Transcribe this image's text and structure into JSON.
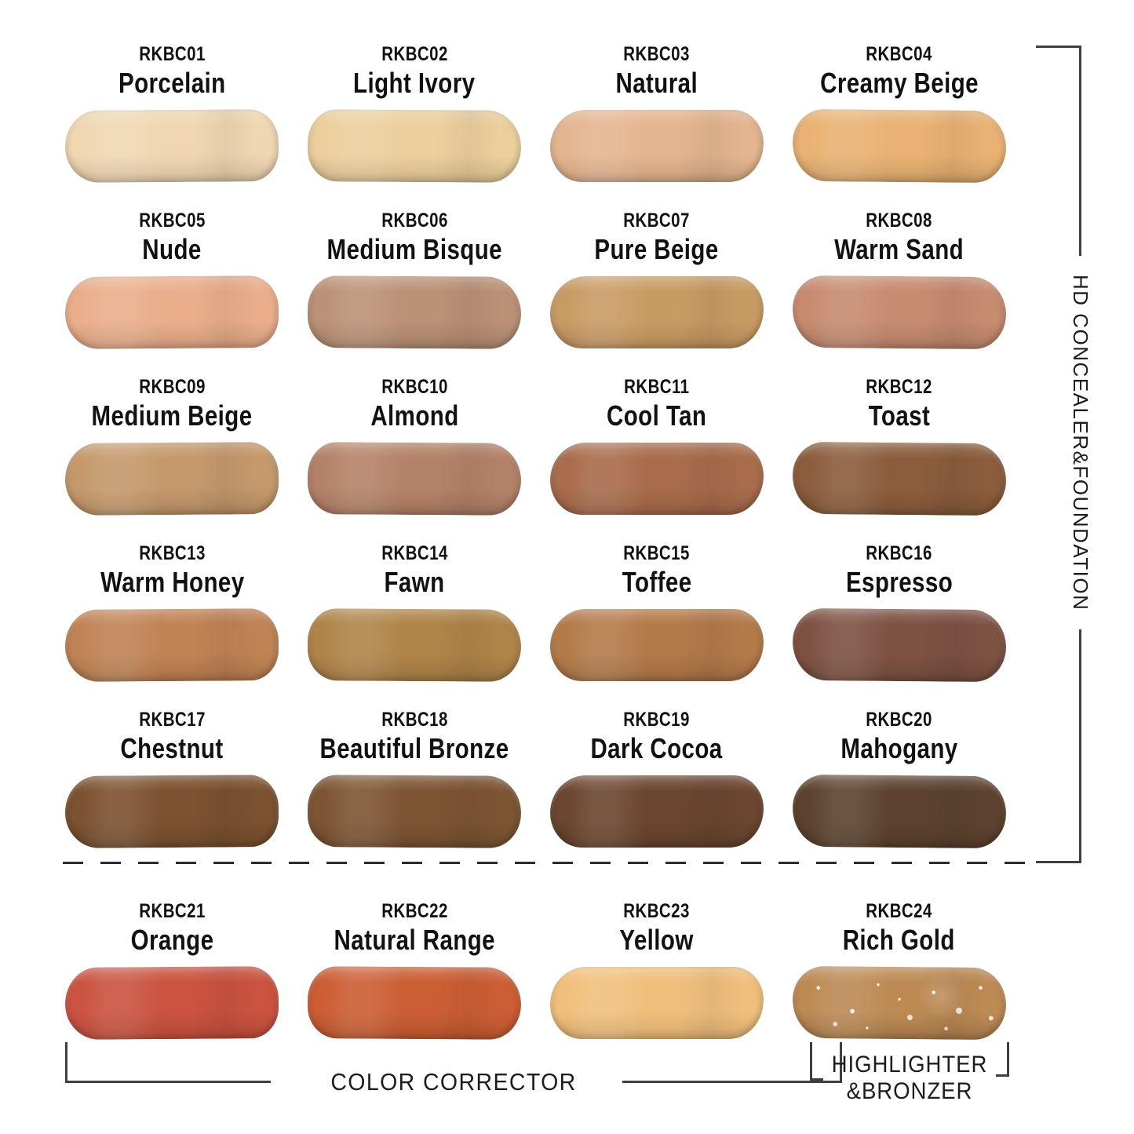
{
  "labels": {
    "right_bracket": "HD CONCEALER&FOUNDATION",
    "color_corrector": "COLOR CORRECTOR",
    "highlighter_line1": "HIGHLIGHTER",
    "highlighter_line2": "&BRONZER"
  },
  "style": {
    "background": "#ffffff",
    "text_color": "#111111",
    "line_color": "#3f3f3f"
  },
  "chart_data": {
    "type": "table",
    "title": "",
    "columns": [
      "code",
      "name",
      "group",
      "color_hex",
      "finish"
    ],
    "groups": [
      "HD CONCEALER&FOUNDATION",
      "COLOR CORRECTOR",
      "HIGHLIGHTER&BRONZER"
    ],
    "shades": [
      {
        "code": "RKBC01",
        "name": "Porcelain",
        "group": "HD CONCEALER&FOUNDATION",
        "color_hex": "#F0D7B2",
        "finish": "matte"
      },
      {
        "code": "RKBC02",
        "name": "Light Ivory",
        "group": "HD CONCEALER&FOUNDATION",
        "color_hex": "#ECCF9D",
        "finish": "matte"
      },
      {
        "code": "RKBC03",
        "name": "Natural",
        "group": "HD CONCEALER&FOUNDATION",
        "color_hex": "#E4B58F",
        "finish": "matte"
      },
      {
        "code": "RKBC04",
        "name": "Creamy Beige",
        "group": "HD CONCEALER&FOUNDATION",
        "color_hex": "#E9B273",
        "finish": "matte"
      },
      {
        "code": "RKBC05",
        "name": "Nude",
        "group": "HD CONCEALER&FOUNDATION",
        "color_hex": "#EAAE8B",
        "finish": "matte"
      },
      {
        "code": "RKBC06",
        "name": "Medium Bisque",
        "group": "HD CONCEALER&FOUNDATION",
        "color_hex": "#BB9177",
        "finish": "matte"
      },
      {
        "code": "RKBC07",
        "name": "Pure Beige",
        "group": "HD CONCEALER&FOUNDATION",
        "color_hex": "#C99B64",
        "finish": "matte"
      },
      {
        "code": "RKBC08",
        "name": "Warm Sand",
        "group": "HD CONCEALER&FOUNDATION",
        "color_hex": "#C78B70",
        "finish": "matte"
      },
      {
        "code": "RKBC09",
        "name": "Medium Beige",
        "group": "HD CONCEALER&FOUNDATION",
        "color_hex": "#C5996C",
        "finish": "matte"
      },
      {
        "code": "RKBC10",
        "name": "Almond",
        "group": "HD CONCEALER&FOUNDATION",
        "color_hex": "#B48268",
        "finish": "matte"
      },
      {
        "code": "RKBC11",
        "name": "Cool Tan",
        "group": "HD CONCEALER&FOUNDATION",
        "color_hex": "#A96C4C",
        "finish": "matte"
      },
      {
        "code": "RKBC12",
        "name": "Toast",
        "group": "HD CONCEALER&FOUNDATION",
        "color_hex": "#8B5D3C",
        "finish": "matte"
      },
      {
        "code": "RKBC13",
        "name": "Warm Honey",
        "group": "HD CONCEALER&FOUNDATION",
        "color_hex": "#C08355",
        "finish": "matte"
      },
      {
        "code": "RKBC14",
        "name": "Fawn",
        "group": "HD CONCEALER&FOUNDATION",
        "color_hex": "#B08449",
        "finish": "matte"
      },
      {
        "code": "RKBC15",
        "name": "Toffee",
        "group": "HD CONCEALER&FOUNDATION",
        "color_hex": "#B37A4A",
        "finish": "matte"
      },
      {
        "code": "RKBC16",
        "name": "Espresso",
        "group": "HD CONCEALER&FOUNDATION",
        "color_hex": "#7D5243",
        "finish": "matte"
      },
      {
        "code": "RKBC17",
        "name": "Chestnut",
        "group": "HD CONCEALER&FOUNDATION",
        "color_hex": "#7C5230",
        "finish": "matte"
      },
      {
        "code": "RKBC18",
        "name": "Beautiful Bronze",
        "group": "HD CONCEALER&FOUNDATION",
        "color_hex": "#7D5533",
        "finish": "matte"
      },
      {
        "code": "RKBC19",
        "name": "Dark Cocoa",
        "group": "HD CONCEALER&FOUNDATION",
        "color_hex": "#6B4630",
        "finish": "matte"
      },
      {
        "code": "RKBC20",
        "name": "Mahogany",
        "group": "HD CONCEALER&FOUNDATION",
        "color_hex": "#5D432F",
        "finish": "matte"
      },
      {
        "code": "RKBC21",
        "name": "Orange",
        "group": "COLOR CORRECTOR",
        "color_hex": "#CB5340",
        "finish": "matte"
      },
      {
        "code": "RKBC22",
        "name": "Natural Range",
        "group": "COLOR CORRECTOR",
        "color_hex": "#CC5E34",
        "finish": "matte"
      },
      {
        "code": "RKBC23",
        "name": "Yellow",
        "group": "COLOR CORRECTOR",
        "color_hex": "#F1BF7C",
        "finish": "matte"
      },
      {
        "code": "RKBC24",
        "name": "Rich Gold",
        "group": "HIGHLIGHTER&BRONZER",
        "color_hex": "#BD8A54",
        "finish": "shimmer"
      }
    ]
  }
}
